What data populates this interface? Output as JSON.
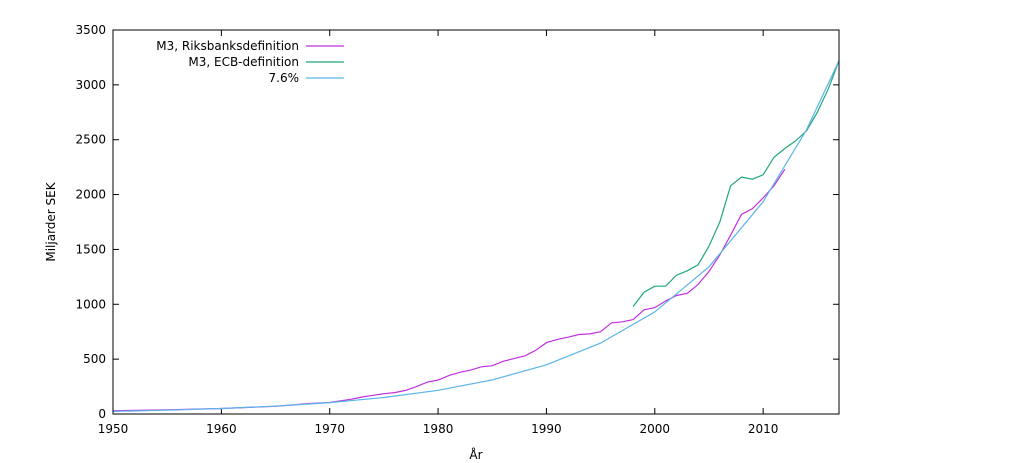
{
  "chart_data": {
    "type": "line",
    "title": "",
    "xlabel": "År",
    "ylabel": "Miljarder SEK",
    "xlim": [
      1950,
      2017
    ],
    "ylim": [
      0,
      3500
    ],
    "x_ticks": [
      1950,
      1960,
      1970,
      1980,
      1990,
      2000,
      2010
    ],
    "y_ticks": [
      0,
      500,
      1000,
      1500,
      2000,
      2500,
      3000,
      3500
    ],
    "grid": false,
    "legend_position": "top-left",
    "series": [
      {
        "name": "M3, Riksbanksdefinition",
        "color": "#c030e0",
        "x": [
          1950,
          1955,
          1960,
          1965,
          1968,
          1970,
          1972,
          1973,
          1974,
          1975,
          1976,
          1977,
          1978,
          1979,
          1980,
          1981,
          1982,
          1983,
          1984,
          1985,
          1986,
          1987,
          1988,
          1989,
          1990,
          1991,
          1992,
          1993,
          1994,
          1995,
          1996,
          1997,
          1998,
          1999,
          2000,
          2001,
          2002,
          2003,
          2004,
          2005,
          2006,
          2007,
          2008,
          2009,
          2010,
          2011,
          2012
        ],
        "y": [
          30,
          38,
          50,
          70,
          95,
          105,
          135,
          155,
          170,
          185,
          195,
          215,
          250,
          290,
          310,
          350,
          380,
          400,
          430,
          440,
          480,
          505,
          530,
          580,
          650,
          680,
          700,
          725,
          730,
          750,
          830,
          840,
          860,
          950,
          970,
          1030,
          1080,
          1100,
          1180,
          1300,
          1450,
          1630,
          1820,
          1870,
          1970,
          2080,
          2230
        ]
      },
      {
        "name": "M3, ECB-definition",
        "color": "#20a878",
        "x": [
          1998,
          1999,
          2000,
          2001,
          2002,
          2003,
          2004,
          2005,
          2006,
          2007,
          2008,
          2009,
          2010,
          2011,
          2012,
          2013,
          2014,
          2015,
          2016,
          2017
        ],
        "y": [
          980,
          1110,
          1165,
          1165,
          1265,
          1305,
          1360,
          1530,
          1750,
          2080,
          2160,
          2140,
          2180,
          2340,
          2420,
          2490,
          2580,
          2750,
          2960,
          3220
        ]
      },
      {
        "name": "7.6%",
        "color": "#5ab4e8",
        "x": [
          1950,
          1955,
          1960,
          1965,
          1970,
          1975,
          1980,
          1985,
          1990,
          1995,
          2000,
          2005,
          2010,
          2014,
          2017
        ],
        "y": [
          24,
          35,
          50,
          72,
          104,
          150,
          216,
          311,
          448,
          646,
          931,
          1342,
          1934,
          2590,
          3220
        ]
      }
    ]
  }
}
